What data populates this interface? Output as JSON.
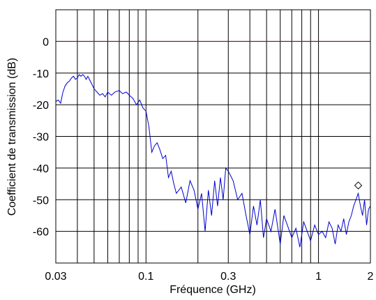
{
  "chart_data": {
    "type": "line",
    "title": "",
    "xlabel": "Fréquence (GHz)",
    "ylabel": "Coefficient de transmission (dB)",
    "x_scale": "log",
    "xlim": [
      0.03,
      2
    ],
    "ylim": [
      -70,
      10
    ],
    "x_tick_labels": [
      {
        "value": 0.03,
        "label": "0.03"
      },
      {
        "value": 0.1,
        "label": "0.1"
      },
      {
        "value": 0.3,
        "label": "0.3"
      },
      {
        "value": 1,
        "label": "1"
      },
      {
        "value": 2,
        "label": "2"
      }
    ],
    "x_gridlines": [
      0.03,
      0.04,
      0.05,
      0.06,
      0.07,
      0.08,
      0.09,
      0.1,
      0.2,
      0.3,
      0.4,
      0.5,
      0.6,
      0.7,
      0.8,
      0.9,
      1,
      2
    ],
    "y_ticks": [
      0,
      -10,
      -20,
      -30,
      -40,
      -50,
      -60
    ],
    "y_gridlines": [
      0,
      -10,
      -20,
      -30,
      -40,
      -50,
      -60
    ],
    "grid": true,
    "reference_line": {
      "y": 0,
      "color": "#cc0000"
    },
    "series_color": "#0000cc",
    "marker": {
      "x": 1.7,
      "y": -45.5,
      "shape": "diamond"
    },
    "series": [
      {
        "x": [
          0.03,
          0.031,
          0.032,
          0.033,
          0.034,
          0.035,
          0.036,
          0.037,
          0.038,
          0.039,
          0.04,
          0.041,
          0.042,
          0.043,
          0.044,
          0.045,
          0.046,
          0.048,
          0.05,
          0.052,
          0.054,
          0.056,
          0.058,
          0.06,
          0.063,
          0.066,
          0.07,
          0.073,
          0.077,
          0.08,
          0.084,
          0.088,
          0.092,
          0.096,
          0.1,
          0.104,
          0.108,
          0.112,
          0.116,
          0.12,
          0.125,
          0.13,
          0.135,
          0.14,
          0.145,
          0.15,
          0.16,
          0.17,
          0.18,
          0.19,
          0.2,
          0.21,
          0.22,
          0.23,
          0.24,
          0.25,
          0.26,
          0.27,
          0.28,
          0.29,
          0.3,
          0.32,
          0.34,
          0.36,
          0.38,
          0.4,
          0.42,
          0.44,
          0.46,
          0.48,
          0.5,
          0.53,
          0.56,
          0.6,
          0.63,
          0.66,
          0.7,
          0.74,
          0.78,
          0.82,
          0.86,
          0.9,
          0.95,
          1.0,
          1.05,
          1.1,
          1.15,
          1.2,
          1.25,
          1.3,
          1.35,
          1.4,
          1.45,
          1.5,
          1.55,
          1.6,
          1.65,
          1.7,
          1.75,
          1.8,
          1.85,
          1.9,
          1.95,
          2.0
        ],
        "y": [
          -19,
          -18.5,
          -19.5,
          -16,
          -14,
          -13,
          -12.5,
          -11.5,
          -11,
          -12,
          -11.5,
          -10.5,
          -11,
          -10.5,
          -11,
          -12,
          -11,
          -13,
          -15,
          -16,
          -17,
          -16.5,
          -17.5,
          -16,
          -17,
          -16,
          -15.5,
          -16.5,
          -16,
          -17,
          -18,
          -20,
          -18.5,
          -21,
          -22,
          -27,
          -35,
          -33,
          -32,
          -34,
          -37,
          -36,
          -43,
          -41,
          -45,
          -48,
          -46,
          -51,
          -44,
          -47,
          -53,
          -48,
          -60,
          -47,
          -55,
          -44,
          -52,
          -43,
          -50,
          -40,
          -41,
          -44,
          -50,
          -48,
          -55,
          -61,
          -52,
          -58,
          -50,
          -62,
          -56,
          -60,
          -53,
          -64,
          -55,
          -58,
          -62,
          -59,
          -65,
          -57,
          -60,
          -63,
          -58,
          -61,
          -60,
          -62,
          -57,
          -59,
          -64,
          -58,
          -60,
          -56,
          -61,
          -57,
          -55,
          -52,
          -50,
          -48,
          -52,
          -55,
          -50,
          -58,
          -53,
          -52
        ]
      }
    ]
  }
}
